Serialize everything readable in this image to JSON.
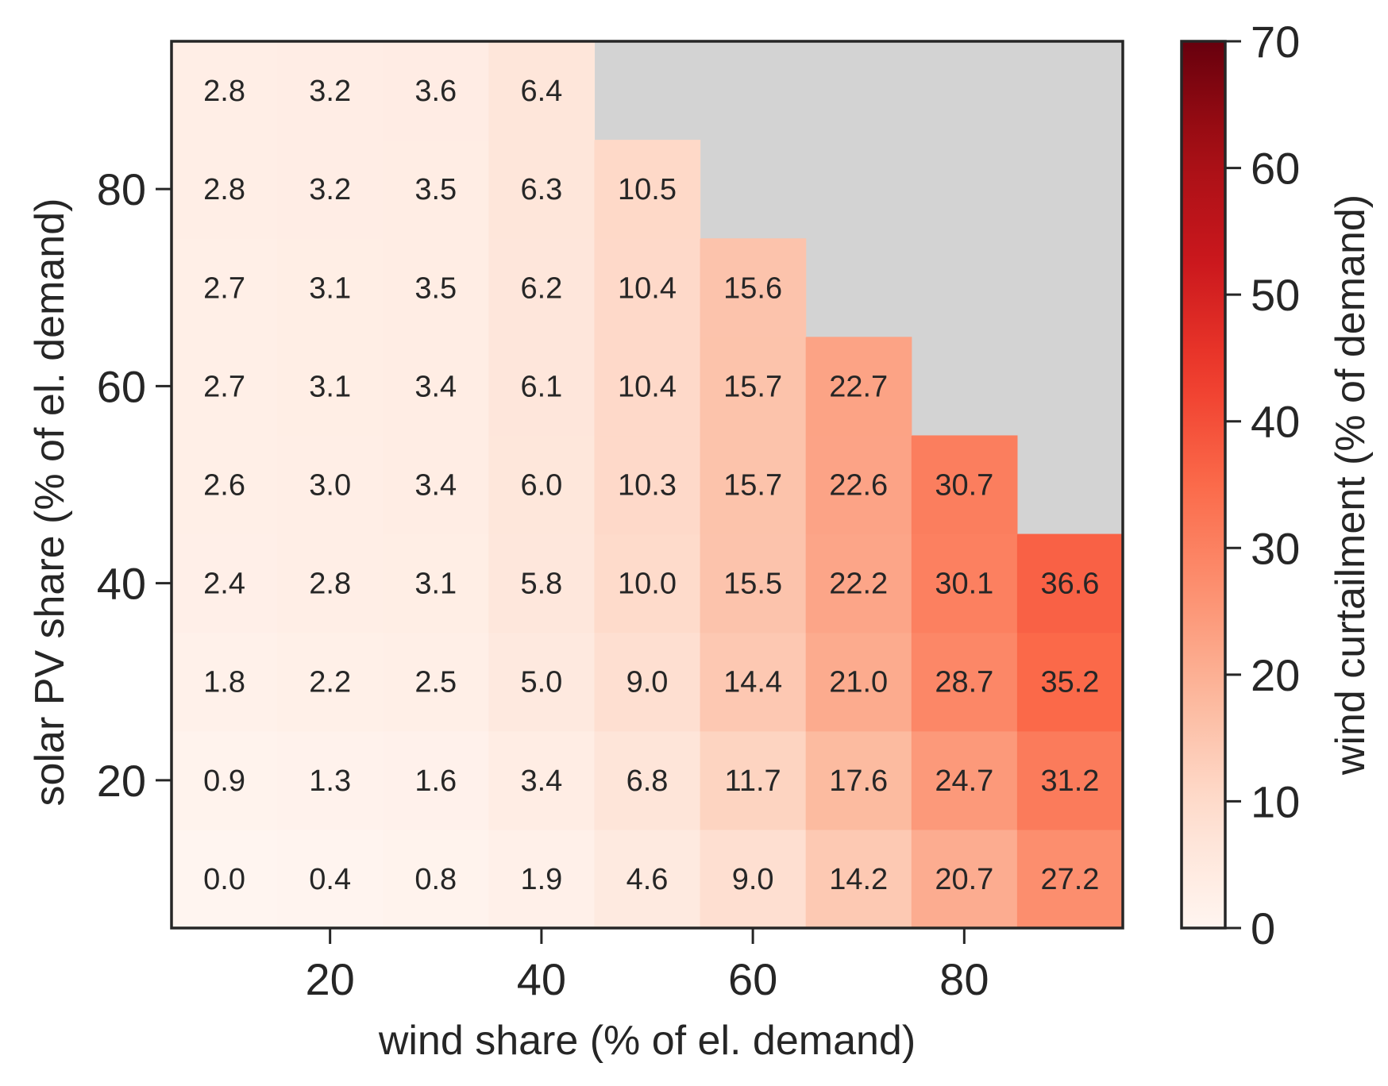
{
  "chart_data": {
    "type": "heatmap",
    "xlabel": "wind share (% of el. demand)",
    "ylabel": "solar PV share (% of el. demand)",
    "colorbar_label": "wind curtailment (% of demand)",
    "x": [
      10,
      20,
      30,
      40,
      50,
      60,
      70,
      80,
      90
    ],
    "y": [
      10,
      20,
      30,
      40,
      50,
      60,
      70,
      80,
      90
    ],
    "xlim": [
      5,
      95
    ],
    "ylim": [
      5,
      95
    ],
    "x_ticks": [
      20,
      40,
      60,
      80
    ],
    "y_ticks": [
      20,
      40,
      60,
      80
    ],
    "x_tick_labels": [
      "20",
      "40",
      "60",
      "80"
    ],
    "y_tick_labels": [
      "20",
      "40",
      "60",
      "80"
    ],
    "colorbar_range": [
      0,
      70
    ],
    "colorbar_ticks": [
      0,
      10,
      20,
      30,
      40,
      50,
      60,
      70
    ],
    "colorbar_tick_labels": [
      "0",
      "10",
      "20",
      "30",
      "40",
      "50",
      "60",
      "70"
    ],
    "colormap": "Reds",
    "missing_color": "#d3d3d3",
    "values": [
      [
        0.0,
        0.4,
        0.8,
        1.9,
        4.6,
        9.0,
        14.2,
        20.7,
        27.2
      ],
      [
        0.9,
        1.3,
        1.6,
        3.4,
        6.8,
        11.7,
        17.6,
        24.7,
        31.2
      ],
      [
        1.8,
        2.2,
        2.5,
        5.0,
        9.0,
        14.4,
        21.0,
        28.7,
        35.2
      ],
      [
        2.4,
        2.8,
        3.1,
        5.8,
        10.0,
        15.5,
        22.2,
        30.1,
        36.6
      ],
      [
        2.6,
        3.0,
        3.4,
        6.0,
        10.3,
        15.7,
        22.6,
        30.7,
        null
      ],
      [
        2.7,
        3.1,
        3.4,
        6.1,
        10.4,
        15.7,
        22.7,
        null,
        null
      ],
      [
        2.7,
        3.1,
        3.5,
        6.2,
        10.4,
        15.6,
        null,
        null,
        null
      ],
      [
        2.8,
        3.2,
        3.5,
        6.3,
        10.5,
        null,
        null,
        null,
        null
      ],
      [
        2.8,
        3.2,
        3.6,
        6.4,
        null,
        null,
        null,
        null,
        null
      ]
    ]
  }
}
